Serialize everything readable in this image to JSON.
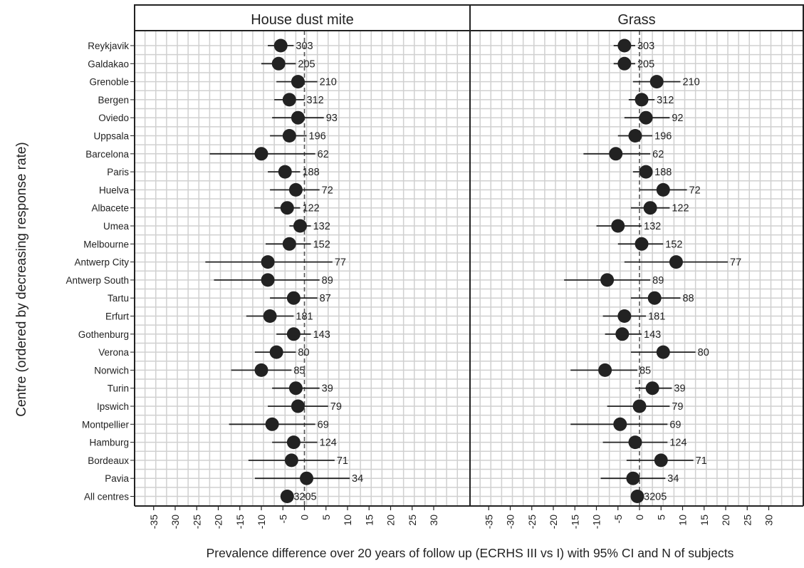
{
  "chart_data": {
    "type": "forest",
    "ylabel": "Centre (ordered by decreasing response rate)",
    "xlabel": "Prevalence difference over 20 years of follow up (ECRHS III vs I) with 95% CI and N of subjects",
    "xlim": [
      -37,
      37
    ],
    "xticks": [
      -35,
      -30,
      -25,
      -20,
      -15,
      -10,
      -5,
      0,
      5,
      10,
      15,
      20,
      25,
      30
    ],
    "grid": true,
    "reference_line": 0,
    "categories": [
      "Reykjavik",
      "Galdakao",
      "Grenoble",
      "Bergen",
      "Oviedo",
      "Uppsala",
      "Barcelona",
      "Paris",
      "Huelva",
      "Albacete",
      "Umea",
      "Melbourne",
      "Antwerp City",
      "Antwerp South",
      "Tartu",
      "Erfurt",
      "Gothenburg",
      "Verona",
      "Norwich",
      "Turin",
      "Ipswich",
      "Montpellier",
      "Hamburg",
      "Bordeaux",
      "Pavia",
      "All centres"
    ],
    "panels": [
      {
        "title": "House dust mite",
        "estimate": [
          -5.5,
          -6,
          -1.5,
          -3.5,
          -1.5,
          -3.5,
          -10,
          -4.5,
          -2,
          -4,
          -1,
          -3.5,
          -8.5,
          -8.5,
          -2.5,
          -8,
          -2.5,
          -6.5,
          -10,
          -2,
          -1.5,
          -7.5,
          -2.5,
          -3,
          0.5,
          -4
        ],
        "ci_low": [
          -8.5,
          -10,
          -6.5,
          -7,
          -7.5,
          -8,
          -22,
          -8.5,
          -8,
          -7,
          -3.5,
          -9,
          -23,
          -21,
          -8,
          -13.5,
          -6.5,
          -11.5,
          -17,
          -7.5,
          -8.5,
          -17.5,
          -7.5,
          -13,
          -11.5,
          -5
        ],
        "ci_high": [
          -2.5,
          -2,
          3,
          0,
          4.5,
          0.5,
          2.5,
          -1,
          3.5,
          -1,
          1.5,
          1.5,
          6.5,
          3.5,
          3,
          -2.5,
          1.5,
          -2,
          -3,
          3.5,
          5.5,
          2.5,
          3,
          7,
          10.5,
          -3
        ],
        "n": [
          "303",
          "205",
          "210",
          "312",
          "93",
          "196",
          "62",
          "188",
          "72",
          "122",
          "132",
          "152",
          "77",
          "89",
          "87",
          "181",
          "143",
          "80",
          "85",
          "39",
          "79",
          "69",
          "124",
          "71",
          "34",
          "3205"
        ]
      },
      {
        "title": "Grass",
        "estimate": [
          -3.5,
          -3.5,
          4,
          0.5,
          1.5,
          -1,
          -5.5,
          1.5,
          5.5,
          2.5,
          -5,
          0.5,
          8.5,
          -7.5,
          3.5,
          -3.5,
          -4,
          5.5,
          -8,
          3,
          0,
          -4.5,
          -1,
          5,
          -1.5,
          -0.5
        ],
        "ci_low": [
          -6,
          -6,
          -1.5,
          -2.5,
          -3.5,
          -5,
          -13,
          -1.5,
          0,
          -2,
          -10,
          -5,
          -3.5,
          -17.5,
          -2,
          -8.5,
          -8,
          -2,
          -16,
          -1,
          -7.5,
          -16,
          -8.5,
          -3,
          -9,
          -1
        ],
        "ci_high": [
          -1,
          -1,
          9.5,
          3.5,
          7,
          3,
          2.5,
          3,
          11,
          7,
          0.5,
          5.5,
          20.5,
          2.5,
          9.5,
          1.5,
          0.5,
          13,
          -0.5,
          7.5,
          7,
          6.5,
          6.5,
          12.5,
          6,
          0.5
        ],
        "n": [
          "303",
          "205",
          "210",
          "312",
          "92",
          "196",
          "62",
          "188",
          "72",
          "122",
          "132",
          "152",
          "77",
          "89",
          "88",
          "181",
          "143",
          "80",
          "85",
          "39",
          "79",
          "69",
          "124",
          "71",
          "34",
          "3205"
        ]
      }
    ]
  },
  "colors": {
    "marker": "#222222",
    "ci_line": "#222222",
    "grid": "#d0d0d0",
    "frame": "#222222",
    "ref_line": "#555555"
  }
}
